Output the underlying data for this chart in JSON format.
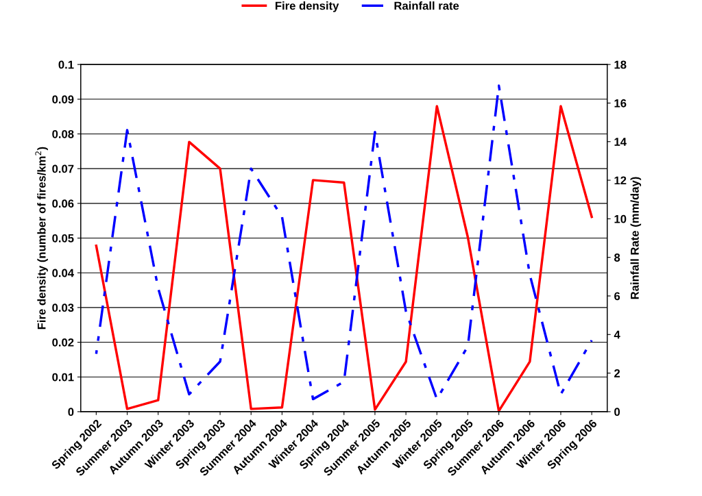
{
  "chart_data": {
    "type": "line",
    "categories": [
      "Spring 2002",
      "Summer 2003",
      "Autumn 2003",
      "Winter 2003",
      "Spring 2003",
      "Summer 2004",
      "Autumn 2004",
      "Winter 2004",
      "Spring 2004",
      "Summer 2005",
      "Autumn 2005",
      "Winter 2005",
      "Spring 2005",
      "Summer 2006",
      "Autumn 2006",
      "Winter 2006",
      "Spring 2006"
    ],
    "series": [
      {
        "name": "Fire density",
        "color": "#ff0000",
        "line_style": "solid",
        "values": [
          0.0478,
          0.0008,
          0.0033,
          0.0777,
          0.07,
          0.0008,
          0.0012,
          0.0667,
          0.066,
          0.0006,
          0.0144,
          0.088,
          0.0502,
          0.0002,
          0.0144,
          0.088,
          0.0561
        ]
      },
      {
        "name": "Rainfall rate",
        "color": "#0000ff",
        "line_style": "dashed",
        "axis": "y2",
        "values": [
          3.0,
          14.6,
          6.4,
          0.9,
          2.6,
          12.6,
          10.1,
          0.65,
          1.55,
          14.5,
          5.2,
          0.65,
          3.4,
          16.9,
          7.1,
          0.9,
          3.7
        ]
      }
    ],
    "ylabel": "Fire density (number of fires/km$^{2}$)",
    "y2label": "Rainfall Rate (mm/day)",
    "ylim": [
      0,
      0.1
    ],
    "yticks": [
      0,
      0.01,
      0.02,
      0.03,
      0.04,
      0.05,
      0.06,
      0.07,
      0.08,
      0.09,
      0.1
    ],
    "y2lim": [
      0,
      18
    ],
    "y2ticks": [
      0,
      2,
      4,
      6,
      8,
      10,
      12,
      14,
      16,
      18
    ],
    "grid": "y",
    "legend": "top",
    "marker": "none"
  }
}
